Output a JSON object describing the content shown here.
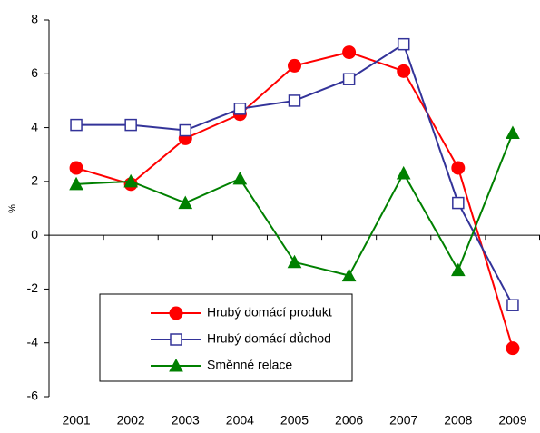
{
  "chart_data": {
    "type": "line",
    "y_label": "%",
    "categories": [
      "2001",
      "2002",
      "2003",
      "2004",
      "2005",
      "2006",
      "2007",
      "2008",
      "2009"
    ],
    "series": [
      {
        "name": "Hrubý domácí produkt",
        "color": "#ff0000",
        "marker": "circle",
        "values": [
          2.5,
          1.9,
          3.6,
          4.5,
          6.3,
          6.8,
          6.1,
          2.5,
          -4.2
        ]
      },
      {
        "name": "Hrubý domácí důchod",
        "color": "#333399",
        "marker": "square",
        "values": [
          4.1,
          4.1,
          3.9,
          4.7,
          5.0,
          5.8,
          7.1,
          1.2,
          -2.6
        ]
      },
      {
        "name": "Směnné relace",
        "color": "#008000",
        "marker": "triangle",
        "values": [
          1.9,
          2.0,
          1.2,
          2.1,
          -1.0,
          -1.5,
          2.3,
          -1.3,
          3.8
        ]
      }
    ],
    "ylim": [
      -6,
      8
    ],
    "yticks": [
      -6,
      -4,
      -2,
      0,
      2,
      4,
      6,
      8
    ],
    "grid": false
  }
}
